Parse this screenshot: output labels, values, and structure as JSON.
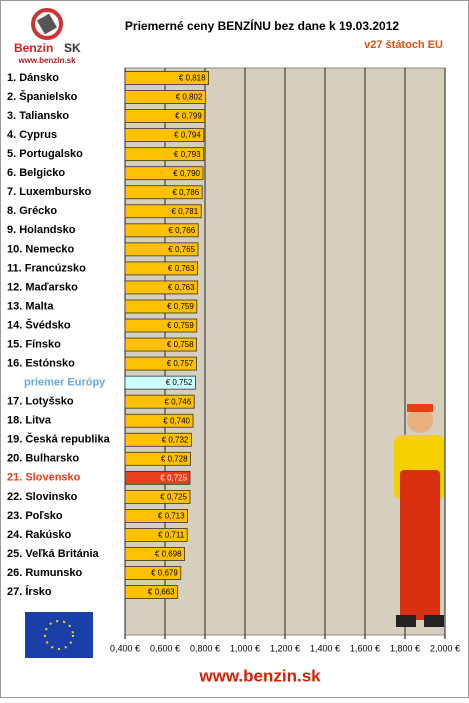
{
  "logo": {
    "brand": "Benzin",
    "country": "SK",
    "url": "www.benzin.sk"
  },
  "footer": "www.benzin.sk",
  "chart_data": {
    "type": "bar",
    "orientation": "horizontal",
    "title": "Priemerné ceny BENZÍNU bez dane k 19.03.2012",
    "subtitle": "v27 štátoch EU",
    "categories": [
      "1. Dánsko",
      "2. Španielsko",
      "3. Taliansko",
      "4. Cyprus",
      "5. Portugalsko",
      "6. Belgicko",
      "7. Luxembursko",
      "8. Grécko",
      "9. Holandsko",
      "10. Nemecko",
      "11. Francúzsko",
      "12. Maďarsko",
      "13. Malta",
      "14. Švédsko",
      "15. Fínsko",
      "16. Estónsko",
      "priemer Európy",
      "17. Lotyšsko",
      "18. Litva",
      "19. Česká republika",
      "20. Bulharsko",
      "21. Slovensko",
      "22. Slovinsko",
      "23. Poľsko",
      "24. Rakúsko",
      "25. Veľká Británia",
      "26. Rumunsko",
      "27. Írsko"
    ],
    "values": [
      0.818,
      0.802,
      0.799,
      0.794,
      0.793,
      0.79,
      0.786,
      0.781,
      0.766,
      0.765,
      0.763,
      0.763,
      0.759,
      0.759,
      0.758,
      0.757,
      0.752,
      0.746,
      0.74,
      0.732,
      0.728,
      0.725,
      0.725,
      0.713,
      0.711,
      0.698,
      0.679,
      0.663
    ],
    "value_labels": [
      "€ 0,818",
      "€ 0,802",
      "€ 0,799",
      "€ 0,794",
      "€ 0,793",
      "€ 0,790",
      "€ 0,786",
      "€ 0,781",
      "€ 0,766",
      "€ 0,765",
      "€ 0,763",
      "€ 0,763",
      "€ 0,759",
      "€ 0,759",
      "€ 0,758",
      "€ 0,757",
      "€ 0,752",
      "€ 0,746",
      "€ 0,740",
      "€ 0,732",
      "€ 0,728",
      "€ 0,725",
      "€ 0,725",
      "€ 0,713",
      "€ 0,711",
      "€ 0,698",
      "€ 0,679",
      "€ 0,663"
    ],
    "colors": [
      "#ffc000",
      "#ffc000",
      "#ffc000",
      "#ffc000",
      "#ffc000",
      "#ffc000",
      "#ffc000",
      "#ffc000",
      "#ffc000",
      "#ffc000",
      "#ffc000",
      "#ffc000",
      "#ffc000",
      "#ffc000",
      "#ffc000",
      "#ffc000",
      "#ccffff",
      "#ffc000",
      "#ffc000",
      "#ffc000",
      "#ffc000",
      "#e8401c",
      "#ffc000",
      "#ffc000",
      "#ffc000",
      "#ffc000",
      "#ffc000",
      "#ffc000"
    ],
    "category_colors": [
      "#000000",
      "#000000",
      "#000000",
      "#000000",
      "#000000",
      "#000000",
      "#000000",
      "#000000",
      "#000000",
      "#000000",
      "#000000",
      "#000000",
      "#000000",
      "#000000",
      "#000000",
      "#000000",
      "#66aadd",
      "#000000",
      "#000000",
      "#000000",
      "#000000",
      "#e8401c",
      "#000000",
      "#000000",
      "#000000",
      "#000000",
      "#000000",
      "#000000"
    ],
    "xlim": [
      0.4,
      2.0
    ],
    "xticks": [
      {
        "value": 0.4,
        "label": "0,400 €"
      },
      {
        "value": 0.6,
        "label": "0,600 €"
      },
      {
        "value": 0.8,
        "label": "0,800 €"
      },
      {
        "value": 1.0,
        "label": "1,000 €"
      },
      {
        "value": 1.2,
        "label": "1,200 €"
      },
      {
        "value": 1.4,
        "label": "1,400 €"
      },
      {
        "value": 1.6,
        "label": "1,600 €"
      },
      {
        "value": 1.8,
        "label": "1,800 €"
      },
      {
        "value": 2.0,
        "label": "2,000 €"
      }
    ],
    "grid": true
  }
}
